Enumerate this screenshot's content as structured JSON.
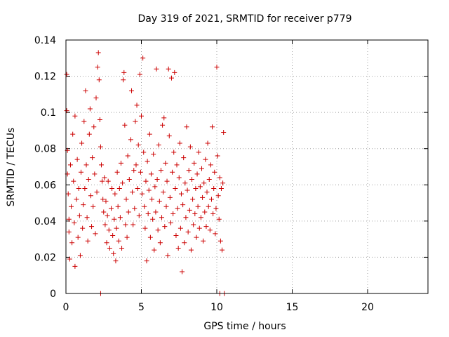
{
  "chart_data": {
    "type": "scatter",
    "title": "Day 319 of 2021, SRMTID for receiver p779",
    "xlabel": "GPS time / hours",
    "ylabel": "SRMTID / TECUs",
    "xlim": [
      0,
      24
    ],
    "ylim": [
      0,
      0.14
    ],
    "x_ticks": [
      0,
      5,
      10,
      15,
      20
    ],
    "x_tick_labels": [
      "0",
      "5",
      "10",
      "15",
      "20"
    ],
    "y_ticks": [
      0,
      0.02,
      0.04,
      0.06,
      0.08,
      0.1,
      0.12,
      0.14
    ],
    "y_tick_labels": [
      "0",
      "0.02",
      "0.04",
      "0.06",
      "0.08",
      "0.1",
      "0.12",
      "0.14"
    ],
    "grid": true,
    "marker": "plus",
    "series": [
      {
        "name": "SRMTID",
        "color": "#cc0000",
        "note": "Dense scatter of several hundred points between about 0 and 10.5 hours, values mostly 0.02-0.08 TECU; representative points listed.",
        "points": [
          [
            0.05,
            0.121
          ],
          [
            0.05,
            0.101
          ],
          [
            0.1,
            0.079
          ],
          [
            0.1,
            0.066
          ],
          [
            0.15,
            0.055
          ],
          [
            0.2,
            0.041
          ],
          [
            0.2,
            0.034
          ],
          [
            0.25,
            0.019
          ],
          [
            0.3,
            0.071
          ],
          [
            0.35,
            0.048
          ],
          [
            0.4,
            0.028
          ],
          [
            0.45,
            0.088
          ],
          [
            0.5,
            0.062
          ],
          [
            0.55,
            0.039
          ],
          [
            0.6,
            0.098
          ],
          [
            0.6,
            0.015
          ],
          [
            0.7,
            0.052
          ],
          [
            0.75,
            0.074
          ],
          [
            0.8,
            0.031
          ],
          [
            0.85,
            0.058
          ],
          [
            0.9,
            0.043
          ],
          [
            0.95,
            0.021
          ],
          [
            1.0,
            0.067
          ],
          [
            1.05,
            0.083
          ],
          [
            1.1,
            0.036
          ],
          [
            1.15,
            0.049
          ],
          [
            1.2,
            0.095
          ],
          [
            1.25,
            0.058
          ],
          [
            1.3,
            0.112
          ],
          [
            1.35,
            0.071
          ],
          [
            1.4,
            0.042
          ],
          [
            1.45,
            0.029
          ],
          [
            1.5,
            0.063
          ],
          [
            1.55,
            0.088
          ],
          [
            1.6,
            0.102
          ],
          [
            1.65,
            0.054
          ],
          [
            1.7,
            0.037
          ],
          [
            1.75,
            0.075
          ],
          [
            1.8,
            0.048
          ],
          [
            1.85,
            0.092
          ],
          [
            1.9,
            0.066
          ],
          [
            1.95,
            0.033
          ],
          [
            2.0,
            0.108
          ],
          [
            2.05,
            0.056
          ],
          [
            2.1,
            0.125
          ],
          [
            2.15,
            0.133
          ],
          [
            2.2,
            0.118
          ],
          [
            2.25,
            0.096
          ],
          [
            2.3,
            0.081
          ],
          [
            2.35,
            0.071
          ],
          [
            2.4,
            0.062
          ],
          [
            2.45,
            0.052
          ],
          [
            2.5,
            0.045
          ],
          [
            2.55,
            0.064
          ],
          [
            2.6,
            0.038
          ],
          [
            2.65,
            0.051
          ],
          [
            2.7,
            0.028
          ],
          [
            2.75,
            0.043
          ],
          [
            2.8,
            0.062
          ],
          [
            2.85,
            0.035
          ],
          [
            2.9,
            0.025
          ],
          [
            3.0,
            0.047
          ],
          [
            3.05,
            0.058
          ],
          [
            3.1,
            0.032
          ],
          [
            3.15,
            0.022
          ],
          [
            3.2,
            0.041
          ],
          [
            3.25,
            0.055
          ],
          [
            3.3,
            0.018
          ],
          [
            3.35,
            0.036
          ],
          [
            3.4,
            0.067
          ],
          [
            3.45,
            0.048
          ],
          [
            3.5,
            0.029
          ],
          [
            3.55,
            0.058
          ],
          [
            3.6,
            0.042
          ],
          [
            3.65,
            0.072
          ],
          [
            3.7,
            0.025
          ],
          [
            3.75,
            0.061
          ],
          [
            3.8,
            0.118
          ],
          [
            3.85,
            0.122
          ],
          [
            3.9,
            0.093
          ],
          [
            3.95,
            0.038
          ],
          [
            4.0,
            0.052
          ],
          [
            4.05,
            0.031
          ],
          [
            4.1,
            0.076
          ],
          [
            4.15,
            0.045
          ],
          [
            4.2,
            0.063
          ],
          [
            4.3,
            0.085
          ],
          [
            4.35,
            0.112
          ],
          [
            4.4,
            0.056
          ],
          [
            4.45,
            0.038
          ],
          [
            4.5,
            0.068
          ],
          [
            4.55,
            0.047
          ],
          [
            4.6,
            0.095
          ],
          [
            4.65,
            0.071
          ],
          [
            4.7,
            0.104
          ],
          [
            4.75,
            0.058
          ],
          [
            4.8,
            0.082
          ],
          [
            4.85,
            0.043
          ],
          [
            4.9,
            0.121
          ],
          [
            4.95,
            0.067
          ],
          [
            5.0,
            0.098
          ],
          [
            5.05,
            0.055
          ],
          [
            5.1,
            0.13
          ],
          [
            5.15,
            0.078
          ],
          [
            5.2,
            0.048
          ],
          [
            5.25,
            0.036
          ],
          [
            5.3,
            0.062
          ],
          [
            5.35,
            0.018
          ],
          [
            5.4,
            0.073
          ],
          [
            5.45,
            0.044
          ],
          [
            5.5,
            0.057
          ],
          [
            5.55,
            0.088
          ],
          [
            5.6,
            0.031
          ],
          [
            5.65,
            0.066
          ],
          [
            5.7,
            0.052
          ],
          [
            5.75,
            0.041
          ],
          [
            5.8,
            0.077
          ],
          [
            5.85,
            0.024
          ],
          [
            5.9,
            0.059
          ],
          [
            5.95,
            0.045
          ],
          [
            6.0,
            0.124
          ],
          [
            6.05,
            0.063
          ],
          [
            6.1,
            0.035
          ],
          [
            6.15,
            0.082
          ],
          [
            6.2,
            0.051
          ],
          [
            6.25,
            0.028
          ],
          [
            6.3,
            0.068
          ],
          [
            6.35,
            0.042
          ],
          [
            6.4,
            0.093
          ],
          [
            6.45,
            0.056
          ],
          [
            6.5,
            0.097
          ],
          [
            6.55,
            0.037
          ],
          [
            6.6,
            0.072
          ],
          [
            6.65,
            0.048
          ],
          [
            6.7,
            0.062
          ],
          [
            6.75,
            0.021
          ],
          [
            6.8,
            0.124
          ],
          [
            6.85,
            0.087
          ],
          [
            6.9,
            0.053
          ],
          [
            6.95,
            0.039
          ],
          [
            7.0,
            0.119
          ],
          [
            7.05,
            0.067
          ],
          [
            7.1,
            0.044
          ],
          [
            7.15,
            0.078
          ],
          [
            7.2,
            0.122
          ],
          [
            7.25,
            0.058
          ],
          [
            7.3,
            0.032
          ],
          [
            7.35,
            0.071
          ],
          [
            7.4,
            0.047
          ],
          [
            7.45,
            0.025
          ],
          [
            7.5,
            0.064
          ],
          [
            7.55,
            0.083
          ],
          [
            7.6,
            0.036
          ],
          [
            7.65,
            0.055
          ],
          [
            7.7,
            0.012
          ],
          [
            7.75,
            0.049
          ],
          [
            7.8,
            0.075
          ],
          [
            7.85,
            0.028
          ],
          [
            7.9,
            0.061
          ],
          [
            7.95,
            0.042
          ],
          [
            8.0,
            0.092
          ],
          [
            8.05,
            0.057
          ],
          [
            8.1,
            0.034
          ],
          [
            8.15,
            0.068
          ],
          [
            8.2,
            0.046
          ],
          [
            8.25,
            0.081
          ],
          [
            8.3,
            0.024
          ],
          [
            8.35,
            0.063
          ],
          [
            8.4,
            0.052
          ],
          [
            8.45,
            0.038
          ],
          [
            8.5,
            0.072
          ],
          [
            8.55,
            0.044
          ],
          [
            8.6,
            0.058
          ],
          [
            8.65,
            0.031
          ],
          [
            8.7,
            0.066
          ],
          [
            8.75,
            0.048
          ],
          [
            8.8,
            0.078
          ],
          [
            8.85,
            0.036
          ],
          [
            8.9,
            0.059
          ],
          [
            8.95,
            0.042
          ],
          [
            9.0,
            0.069
          ],
          [
            9.05,
            0.053
          ],
          [
            9.1,
            0.029
          ],
          [
            9.15,
            0.061
          ],
          [
            9.2,
            0.045
          ],
          [
            9.25,
            0.074
          ],
          [
            9.3,
            0.037
          ],
          [
            9.35,
            0.056
          ],
          [
            9.4,
            0.083
          ],
          [
            9.45,
            0.048
          ],
          [
            9.5,
            0.063
          ],
          [
            9.55,
            0.035
          ],
          [
            9.6,
            0.071
          ],
          [
            9.65,
            0.052
          ],
          [
            9.7,
            0.092
          ],
          [
            9.75,
            0.044
          ],
          [
            9.8,
            0.058
          ],
          [
            9.85,
            0.067
          ],
          [
            9.9,
            0.033
          ],
          [
            9.95,
            0.047
          ],
          [
            10.0,
            0.125
          ],
          [
            10.05,
            0.076
          ],
          [
            10.1,
            0.054
          ],
          [
            10.15,
            0.041
          ],
          [
            10.2,
            0.064
          ],
          [
            10.25,
            0.029
          ],
          [
            10.3,
            0.058
          ],
          [
            10.35,
            0.024
          ],
          [
            10.4,
            0.061
          ],
          [
            10.45,
            0.089
          ],
          [
            2.3,
            0.0
          ],
          [
            10.2,
            0.0
          ],
          [
            10.5,
            0.0
          ]
        ]
      }
    ]
  }
}
